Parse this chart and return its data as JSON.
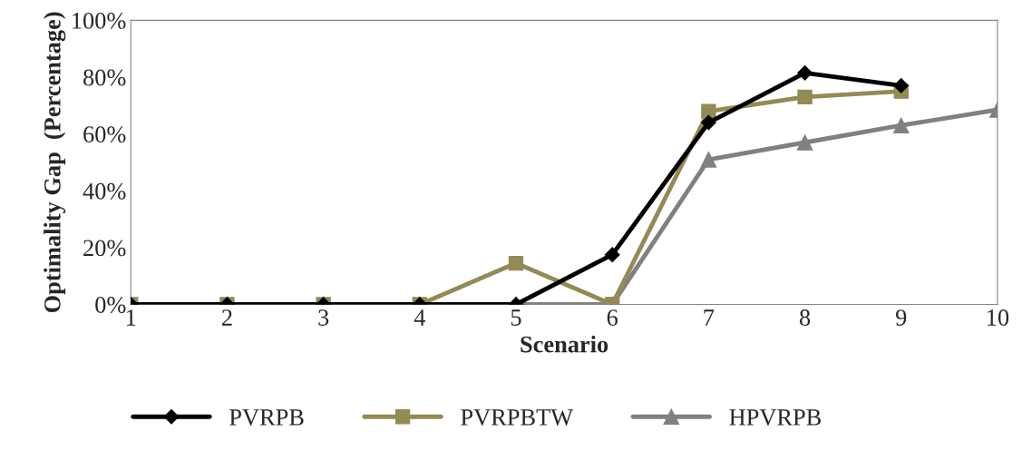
{
  "chart_data": {
    "type": "line",
    "xlabel": "Scenario",
    "ylabel": "Optimality Gap  (Percentage)",
    "x": [
      1,
      2,
      3,
      4,
      5,
      6,
      7,
      8,
      9,
      10
    ],
    "series": [
      {
        "name": "PVRPB",
        "color": "#000000",
        "marker": "diamond",
        "values": [
          0,
          0,
          0,
          0,
          0,
          17.5,
          64,
          81.5,
          77,
          null
        ]
      },
      {
        "name": "PVRPBTW",
        "color": "#948a54",
        "marker": "square",
        "values": [
          0,
          0,
          0,
          0,
          14.5,
          0,
          68,
          73,
          75,
          null
        ]
      },
      {
        "name": "HPVRPB",
        "color": "#808080",
        "marker": "triangle",
        "values": [
          0,
          0,
          0,
          0,
          0,
          0,
          51,
          57,
          63,
          68.5
        ]
      }
    ],
    "xlim": [
      1,
      10
    ],
    "xticks": [
      1,
      2,
      3,
      4,
      5,
      6,
      7,
      8,
      9,
      10
    ],
    "ylim": [
      0,
      100
    ],
    "yticks": [
      {
        "value": 0,
        "label": "0%"
      },
      {
        "value": 20,
        "label": "20%"
      },
      {
        "value": 40,
        "label": "40%"
      },
      {
        "value": 60,
        "label": "60%"
      },
      {
        "value": 80,
        "label": "80%"
      },
      {
        "value": 100,
        "label": "100%"
      }
    ],
    "grid": false,
    "legend": "bottom",
    "line_style": "solid"
  }
}
